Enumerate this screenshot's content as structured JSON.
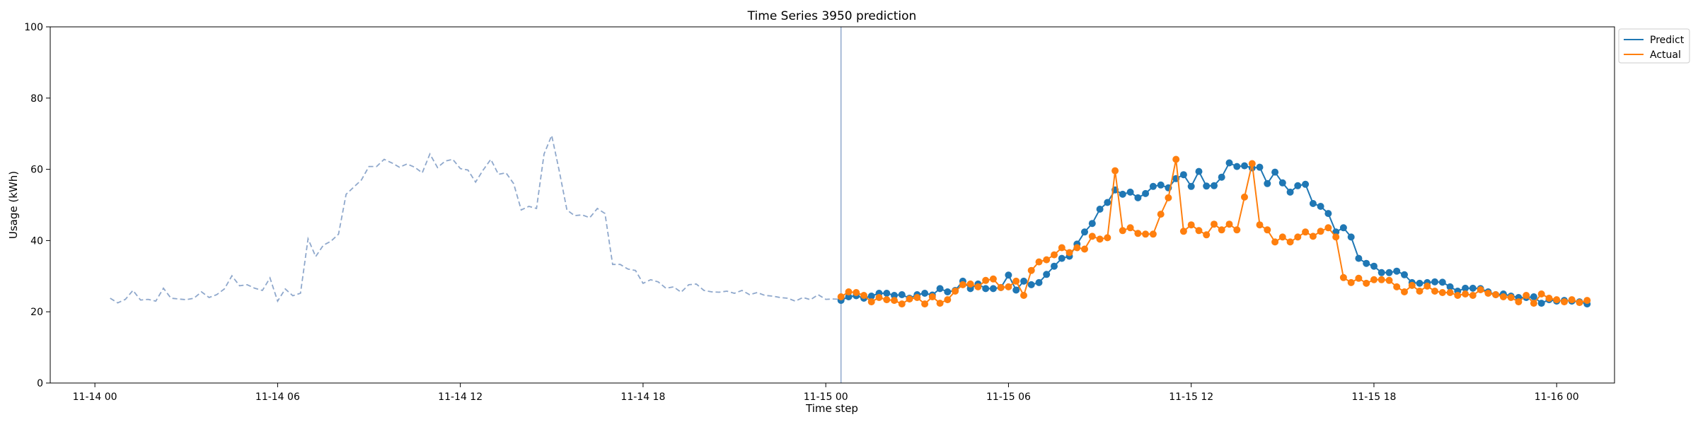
{
  "chart_data": {
    "type": "line",
    "title": "Time Series 3950 prediction",
    "xlabel": "Time step",
    "ylabel": "Usage (kWh)",
    "ylim": [
      0,
      100
    ],
    "xlim": [
      "2023-11-13 22:32",
      "2023-11-16 01:54"
    ],
    "x_ticks": [
      "11-14 00",
      "11-14 06",
      "11-14 12",
      "11-14 18",
      "11-15 00",
      "11-15 06",
      "11-15 12",
      "11-15 18",
      "11-16 00"
    ],
    "x_tick_times": [
      "2023-11-14 00:00",
      "2023-11-14 06:00",
      "2023-11-14 12:00",
      "2023-11-14 18:00",
      "2023-11-15 00:00",
      "2023-11-15 06:00",
      "2023-11-15 12:00",
      "2023-11-15 18:00",
      "2023-11-16 00:00"
    ],
    "y_ticks": [
      "0",
      "20",
      "40",
      "60",
      "80",
      "100"
    ],
    "grid": false,
    "legend_position": "outside-top-right",
    "vertical_line_at": "2023-11-15 00:30",
    "history": {
      "style": "dashed",
      "color": "#8fa8cc",
      "start": "2023-11-14 00:30",
      "interval_minutes": 15,
      "values": [
        23.8,
        22.5,
        23.5,
        26.0,
        23.3,
        23.5,
        23.0,
        26.6,
        23.8,
        23.6,
        23.4,
        23.8,
        25.6,
        24.0,
        24.8,
        26.4,
        30.1,
        27.3,
        27.6,
        26.6,
        26.0,
        29.5,
        23.0,
        26.4,
        24.5,
        25.2,
        40.5,
        35.5,
        38.7,
        39.8,
        41.8,
        53.0,
        55.0,
        57.0,
        60.8,
        60.8,
        62.8,
        61.8,
        60.6,
        61.5,
        60.6,
        59.0,
        64.3,
        60.5,
        62.3,
        62.8,
        60.2,
        59.8,
        56.4,
        59.8,
        62.8,
        58.6,
        59.0,
        56.0,
        48.6,
        49.6,
        49.0,
        64.3,
        69.5,
        59.5,
        48.6,
        47.0,
        47.2,
        46.4,
        49.0,
        47.6,
        33.3,
        33.3,
        32.0,
        31.6,
        28.0,
        29.0,
        28.4,
        26.6,
        27.0,
        25.5,
        27.6,
        27.8,
        26.0,
        25.6,
        25.5,
        25.8,
        25.2,
        26.0,
        24.8,
        25.4,
        24.6,
        24.4,
        24.0,
        23.8,
        23.0,
        24.0,
        23.4,
        24.8,
        23.5,
        23.6,
        23.5,
        24.3
      ]
    },
    "series": [
      {
        "name": "Predict",
        "color": "#1f77b4",
        "start": "2023-11-15 00:30",
        "interval_minutes": 15,
        "values": [
          23.2,
          24.2,
          24.5,
          23.8,
          24.4,
          25.2,
          25.2,
          24.6,
          24.8,
          23.8,
          24.8,
          25.2,
          24.7,
          26.5,
          25.6,
          26.0,
          28.6,
          26.5,
          27.8,
          26.5,
          26.5,
          26.8,
          30.3,
          26.1,
          28.6,
          27.6,
          28.2,
          30.5,
          32.8,
          35.0,
          35.6,
          39.0,
          42.4,
          44.8,
          48.8,
          50.7,
          54.2,
          53.0,
          53.6,
          52.0,
          53.2,
          55.2,
          55.6,
          54.8,
          57.4,
          58.5,
          55.2,
          59.4,
          55.3,
          55.4,
          57.8,
          61.8,
          60.8,
          61.0,
          60.4,
          60.6,
          56.0,
          59.2,
          56.2,
          53.6,
          55.4,
          55.8,
          50.4,
          49.6,
          47.6,
          42.4,
          43.6,
          41.0,
          35.0,
          33.6,
          32.8,
          31.0,
          31.0,
          31.4,
          30.4,
          28.2,
          28.0,
          28.2,
          28.4,
          28.3,
          27.0,
          25.8,
          26.6,
          26.6,
          26.5,
          25.6,
          24.8,
          25.0,
          24.4,
          24.0,
          24.0,
          24.2,
          22.4,
          23.4,
          23.0,
          23.2,
          23.0,
          22.8,
          22.2
        ]
      },
      {
        "name": "Actual",
        "color": "#ff7f0e",
        "start": "2023-11-15 00:30",
        "interval_minutes": 15,
        "values": [
          24.2,
          25.6,
          25.4,
          24.6,
          22.8,
          24.0,
          23.4,
          23.2,
          22.2,
          23.6,
          24.0,
          22.2,
          24.2,
          22.4,
          23.4,
          25.8,
          27.6,
          27.8,
          27.0,
          28.8,
          29.2,
          26.8,
          27.0,
          28.6,
          24.6,
          31.6,
          34.0,
          34.6,
          36.0,
          38.0,
          36.6,
          38.0,
          37.6,
          41.2,
          40.4,
          40.8,
          59.6,
          42.8,
          43.6,
          42.0,
          41.8,
          41.8,
          47.4,
          52.0,
          62.8,
          42.6,
          44.4,
          42.8,
          41.6,
          44.6,
          43.0,
          44.6,
          43.0,
          52.2,
          61.6,
          44.4,
          43.0,
          39.6,
          41.0,
          39.6,
          41.0,
          42.4,
          41.2,
          42.6,
          43.6,
          41.0,
          29.6,
          28.2,
          29.4,
          28.0,
          29.0,
          29.0,
          28.8,
          27.0,
          25.6,
          27.4,
          25.8,
          27.2,
          25.8,
          25.4,
          25.4,
          24.6,
          25.0,
          24.6,
          26.2,
          25.2,
          24.8,
          24.2,
          24.0,
          22.8,
          24.6,
          22.4,
          25.0,
          23.8,
          23.4,
          22.8,
          23.4,
          22.6,
          23.2
        ]
      }
    ]
  }
}
